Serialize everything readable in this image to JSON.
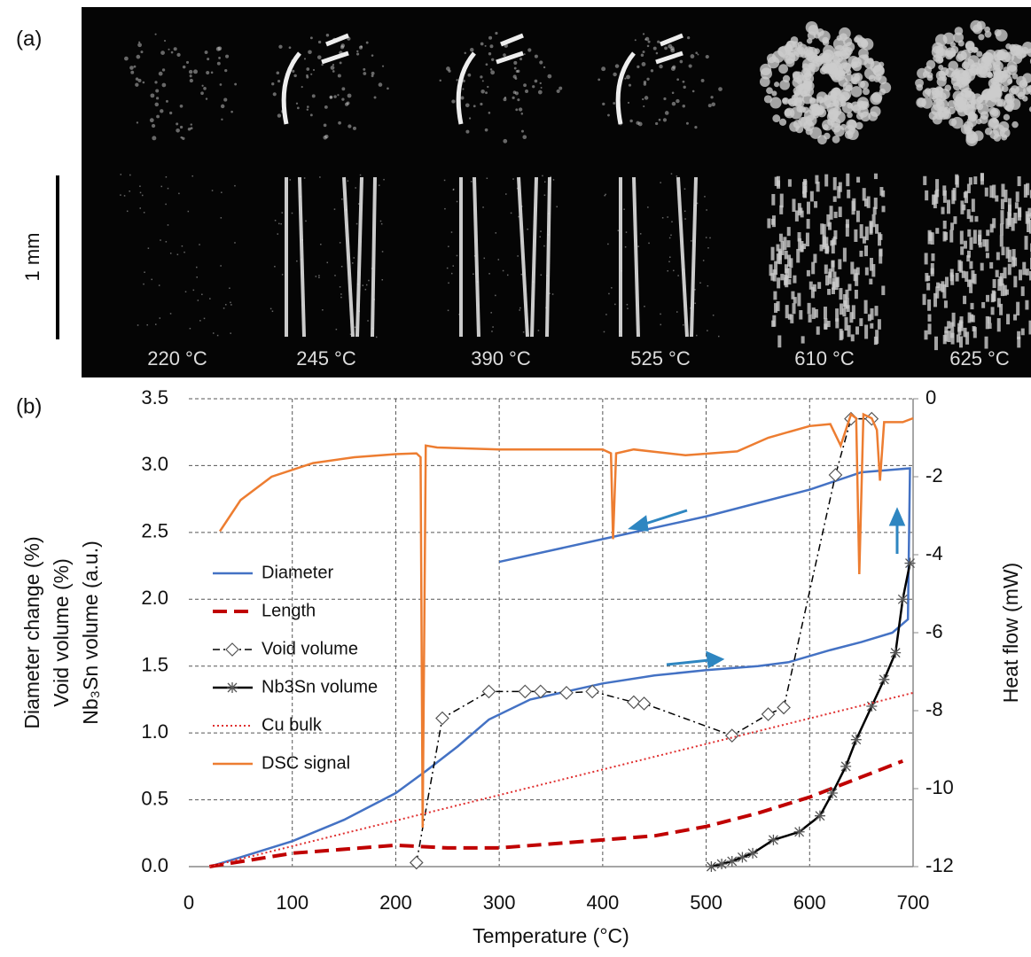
{
  "panel_a": {
    "label": "(a)",
    "scale_bar": "1 mm",
    "temperatures": [
      "220 °C",
      "245 °C",
      "390 °C",
      "525 °C",
      "610 °C",
      "625 °C"
    ]
  },
  "panel_b_label": "(b)",
  "chart_data": {
    "type": "line",
    "xlabel": "Temperature (°C)",
    "ylabels": [
      "Diameter change (%)",
      "Void volume (%)",
      "Nb₃Sn volume (a.u.)"
    ],
    "y2label": "Heat flow (mW)",
    "xlim": [
      0,
      700
    ],
    "xticks": [
      0,
      100,
      200,
      300,
      400,
      500,
      600,
      700
    ],
    "ylim": [
      0,
      3.5
    ],
    "yticks": [
      {
        "value": 0,
        "label": "0.0"
      },
      0.5,
      {
        "value": 1,
        "label": "1.0"
      },
      1.5,
      {
        "value": 2,
        "label": "2.0"
      },
      2.5,
      {
        "value": 3,
        "label": "3.0"
      },
      3.5
    ],
    "y2lim": [
      -12,
      0
    ],
    "y2ticks": [
      -12,
      -10,
      -8,
      -6,
      -4,
      -2,
      0
    ],
    "grid": true,
    "series": [
      {
        "name": "Diameter",
        "color": "#4472c4",
        "style": "solid",
        "x": [
          20,
          50,
          100,
          150,
          200,
          230,
          260,
          290,
          330,
          400,
          450,
          500,
          550,
          580,
          620,
          650,
          680,
          695,
          697,
          650,
          600,
          500,
          400,
          300
        ],
        "values": [
          0,
          0.07,
          0.19,
          0.35,
          0.55,
          0.72,
          0.9,
          1.1,
          1.25,
          1.37,
          1.43,
          1.47,
          1.5,
          1.53,
          1.62,
          1.68,
          1.75,
          1.85,
          2.98,
          2.95,
          2.82,
          2.62,
          2.45,
          2.28
        ]
      },
      {
        "name": "Length",
        "color": "#c00000",
        "style": "dashed",
        "x": [
          20,
          100,
          200,
          250,
          300,
          400,
          450,
          500,
          550,
          600,
          650,
          690
        ],
        "values": [
          0,
          0.1,
          0.16,
          0.14,
          0.14,
          0.2,
          0.23,
          0.3,
          0.4,
          0.52,
          0.67,
          0.79
        ]
      },
      {
        "name": "Void volume",
        "color": "#000000",
        "style": "dashdot",
        "marker": "diamond",
        "x": [
          220,
          245,
          290,
          325,
          340,
          365,
          390,
          430,
          440,
          525,
          560,
          575,
          625,
          640,
          660
        ],
        "values": [
          0.03,
          1.11,
          1.31,
          1.31,
          1.31,
          1.3,
          1.31,
          1.23,
          1.22,
          0.98,
          1.14,
          1.19,
          2.93,
          3.35,
          3.35
        ]
      },
      {
        "name": "Nb3Sn volume",
        "color": "#000000",
        "style": "solid",
        "marker": "star",
        "x": [
          505,
          515,
          525,
          535,
          545,
          565,
          590,
          610,
          622,
          635,
          645,
          660,
          672,
          683,
          690,
          697
        ],
        "values": [
          0,
          0.02,
          0.04,
          0.07,
          0.1,
          0.2,
          0.26,
          0.38,
          0.55,
          0.75,
          0.95,
          1.2,
          1.4,
          1.6,
          2.0,
          2.27
        ]
      },
      {
        "name": "Cu bulk",
        "color": "#e03030",
        "style": "dotted",
        "x": [
          20,
          700
        ],
        "values": [
          0,
          1.3
        ]
      },
      {
        "name": "DSC signal",
        "color": "#ed7d31",
        "style": "solid",
        "axis": "y2",
        "x": [
          30,
          50,
          80,
          120,
          160,
          200,
          220,
          224,
          226,
          229,
          240,
          300,
          400,
          408,
          410,
          413,
          430,
          480,
          530,
          560,
          600,
          620,
          630,
          640,
          645,
          648,
          652,
          660,
          665,
          668,
          672,
          690,
          700
        ],
        "values": [
          -3.4,
          -2.6,
          -2.0,
          -1.65,
          -1.5,
          -1.42,
          -1.4,
          -1.5,
          -11,
          -1.2,
          -1.25,
          -1.3,
          -1.3,
          -1.4,
          -3.6,
          -1.4,
          -1.3,
          -1.45,
          -1.35,
          -1.0,
          -0.7,
          -0.65,
          -1.2,
          -0.4,
          -0.5,
          -4.5,
          -0.4,
          -0.5,
          -0.8,
          -2.1,
          -0.6,
          -0.6,
          -0.5
        ]
      }
    ]
  }
}
